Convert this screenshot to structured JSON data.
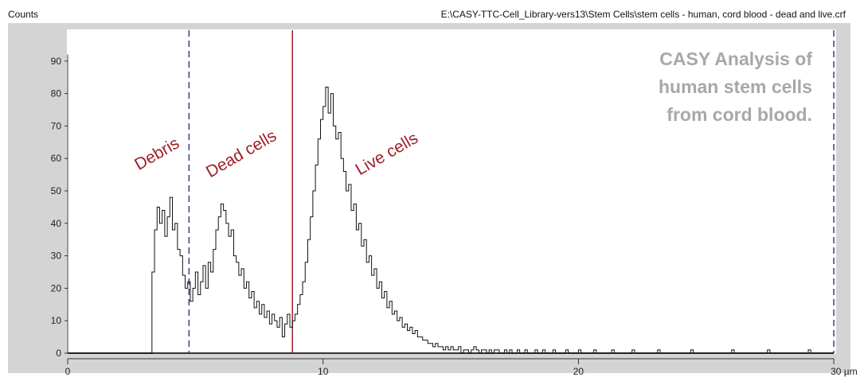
{
  "header": {
    "y_axis_title": "Counts",
    "file_path": "E:\\CASY-TTC-Cell_Library-vers13\\Stem Cells\\stem cells - human, cord blood - dead and live.crf"
  },
  "chart_data": {
    "type": "line",
    "xlabel": "µm",
    "ylabel": "Counts",
    "xlim": [
      0,
      30
    ],
    "ylim": [
      0,
      95
    ],
    "x_ticks": [
      "0",
      "10",
      "20",
      "30 µm"
    ],
    "x_tick_values": [
      0,
      10,
      20,
      30
    ],
    "y_ticks": [
      "0",
      "10",
      "20",
      "30",
      "40",
      "50",
      "60",
      "70",
      "80",
      "90"
    ],
    "y_tick_values": [
      0,
      10,
      20,
      30,
      40,
      50,
      60,
      70,
      80,
      90
    ],
    "grid": false,
    "series": [
      {
        "x_start": 3.3,
        "x_step": 0.1,
        "values": [
          25,
          38,
          45,
          40,
          44,
          36,
          42,
          48,
          38,
          40,
          32,
          30,
          24,
          20,
          22,
          16,
          20,
          25,
          18,
          22,
          27,
          20,
          28,
          25,
          32,
          38,
          42,
          46,
          44,
          40,
          36,
          38,
          30,
          28,
          24,
          26,
          20,
          22,
          17,
          19,
          14,
          16,
          12,
          15,
          11,
          13,
          9,
          12,
          10,
          8,
          11,
          5,
          9,
          12,
          8,
          10,
          12,
          15,
          18,
          22,
          28,
          35,
          42,
          50,
          58,
          66,
          72,
          76,
          82,
          74,
          80,
          70,
          66,
          68,
          60,
          56,
          50,
          52,
          44,
          46,
          38,
          40,
          33,
          35,
          28,
          30,
          24,
          26,
          20,
          22,
          17,
          19,
          14,
          16,
          12,
          13,
          10,
          11,
          8,
          9,
          7,
          8,
          6,
          7,
          5,
          5,
          4,
          4,
          3,
          3,
          2,
          3,
          2,
          2,
          1,
          2,
          1,
          2,
          1,
          1,
          2,
          0,
          1,
          1,
          0,
          1,
          2,
          1,
          0,
          1,
          1,
          0,
          1,
          0,
          1,
          1,
          0,
          0,
          1,
          0,
          1,
          0,
          0,
          1,
          0,
          0,
          1,
          0,
          0,
          0,
          1,
          0,
          0,
          1,
          0,
          0,
          0,
          1,
          0,
          0,
          0,
          0,
          1,
          0,
          0,
          0,
          0,
          1,
          0,
          0,
          0,
          0,
          0,
          1,
          0,
          0,
          0,
          0,
          0,
          0,
          1,
          0,
          0,
          0,
          0,
          0,
          0,
          0,
          1,
          0,
          0,
          0,
          0,
          0,
          0,
          0,
          0,
          0,
          1,
          0,
          0,
          0,
          0,
          0,
          0,
          0,
          0,
          0,
          0,
          0,
          0,
          1,
          0,
          0,
          0,
          0,
          0,
          0,
          0,
          0,
          0,
          0,
          0,
          0,
          0,
          0,
          0,
          1,
          0,
          0,
          0,
          0,
          0,
          0,
          0,
          0,
          0,
          0,
          0,
          0,
          0,
          1,
          0,
          0,
          0,
          0,
          0,
          0,
          0,
          0,
          0,
          0,
          0,
          0,
          0,
          0,
          0,
          1,
          0
        ]
      }
    ],
    "markers": [
      {
        "x": 4.75,
        "style": "dashed",
        "color": "#3a3a8c"
      },
      {
        "x": 8.8,
        "style": "solid",
        "color": "#a0202a"
      },
      {
        "x": 30,
        "style": "dashed",
        "color": "#3a3a8c"
      }
    ],
    "annotations": [
      {
        "text": "Debris",
        "x": 3.6,
        "y": 60
      },
      {
        "text": "Dead cells",
        "x": 6.9,
        "y": 60
      },
      {
        "text": "Live cells",
        "x": 12.6,
        "y": 60
      }
    ],
    "note_lines": [
      "CASY Analysis of",
      "human stem cells",
      "from cord blood."
    ],
    "colors": {
      "line": "#111111",
      "annotation": "#a0202a",
      "note": "#a8a8a8",
      "panel": "#d4d4d4"
    }
  }
}
